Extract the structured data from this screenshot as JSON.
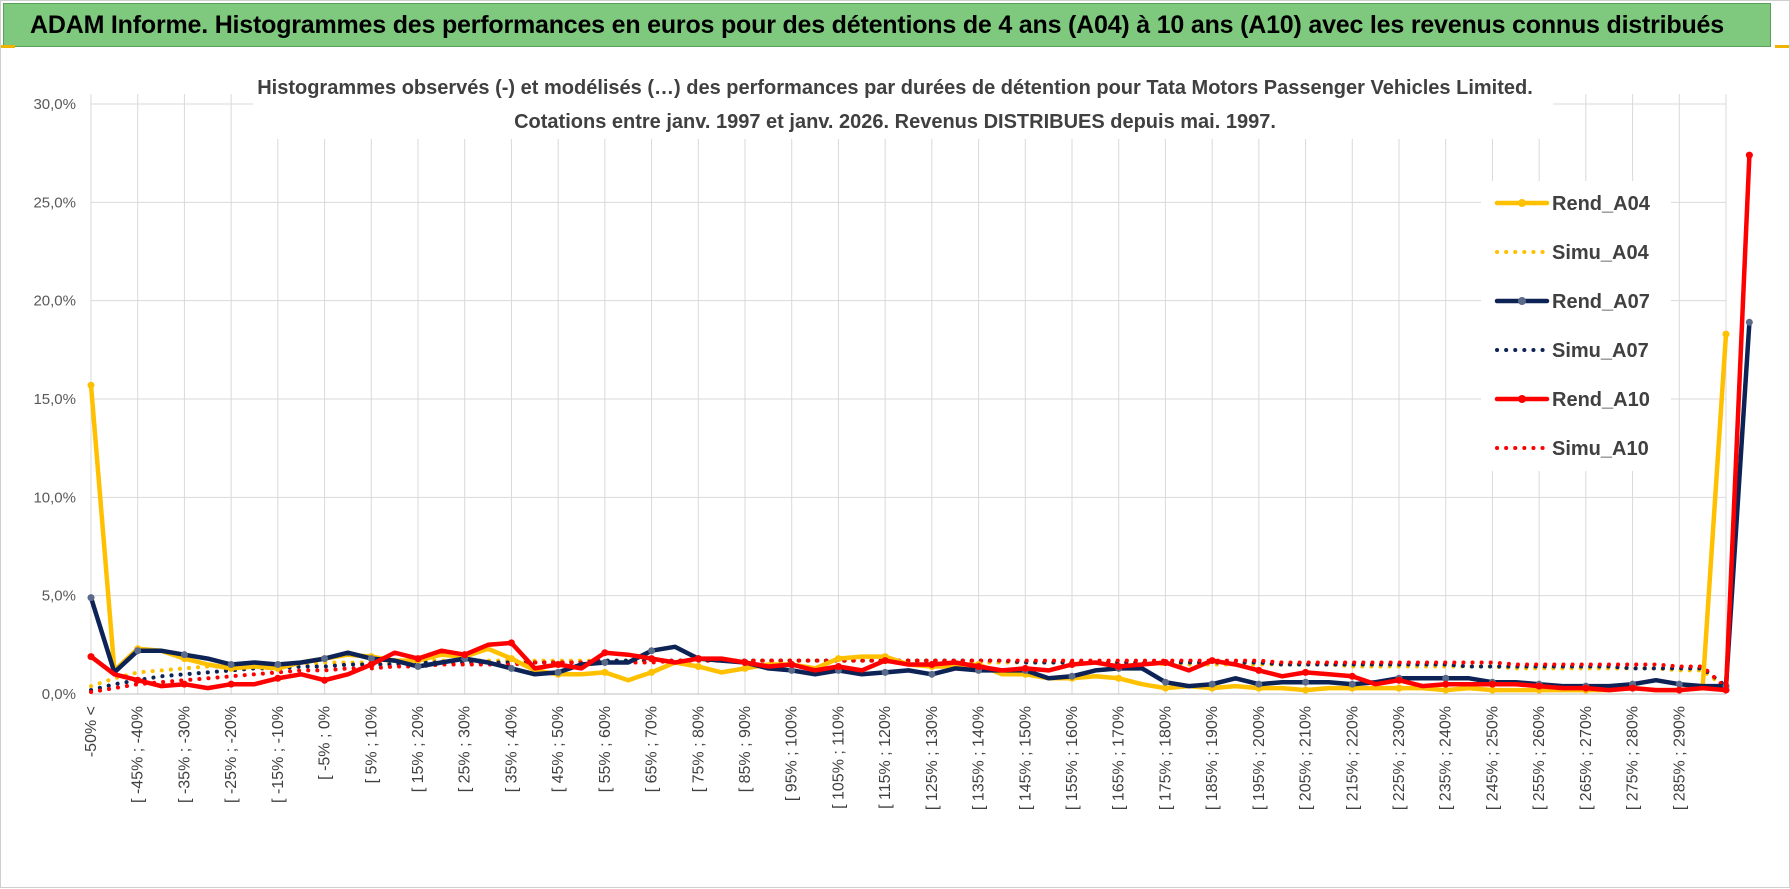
{
  "banner": {
    "title": "ADAM Informe. Histogrammes des performances en euros pour des détentions de 4 ans (A04) à 10 ans (A10) avec les revenus connus distribués"
  },
  "colors": {
    "A04": "#ffc000",
    "A07": "#0d2356",
    "A07_marker": "#5b6b8a",
    "A10": "#ff0000",
    "banner": "#7fc97f",
    "grid": "#d9d9d9"
  },
  "chart_data": {
    "type": "line",
    "title_line1": "Histogrammes observés (-) et modélisés (…) des performances par durées de détention pour Tata Motors Passenger Vehicles Limited.",
    "title_line2": "Cotations entre janv. 1997 et janv. 2026. Revenus DISTRIBUES depuis mai. 1997.",
    "ylim": [
      0,
      30
    ],
    "y_ticks": [
      "0,0%",
      "5,0%",
      "10,0%",
      "15,0%",
      "20,0%",
      "25,0%",
      "30,0%"
    ],
    "grid": true,
    "legend_position": "right",
    "x_labels": [
      "-50% <",
      "[ -45% ; -40%",
      "[ -35% ; -30%",
      "[ -25% ; -20%",
      "[ -15% ; -10%",
      "[ -5% ; 0%",
      "[ 5% ; 10%",
      "[ 15% ; 20%",
      "[ 25% ; 30%",
      "[ 35% ; 40%",
      "[ 45% ; 50%",
      "[ 55% ; 60%",
      "[ 65% ; 70%",
      "[ 75% ; 80%",
      "[ 85% ; 90%",
      "[ 95% ; 100%",
      "[ 105% ; 110%",
      "[ 115% ; 120%",
      "[ 125% ; 130%",
      "[ 135% ; 140%",
      "[ 145% ; 150%",
      "[ 155% ; 160%",
      "[ 165% ; 170%",
      "[ 175% ; 180%",
      "[ 185% ; 190%",
      "[ 195% ; 200%",
      "[ 205% ; 210%",
      "[ 215% ; 220%",
      "[ 225% ; 230%",
      "[ 235% ; 240%",
      "[ 245% ; 250%",
      "[ 255% ; 260%",
      "[ 265% ; 270%",
      "[ 275% ; 280%",
      "[ 285% ; 290%"
    ],
    "series": [
      {
        "name": "Rend_A04",
        "style": "solid",
        "color_key": "A04",
        "values": [
          15.7,
          1.2,
          2.3,
          2.2,
          1.8,
          1.5,
          1.3,
          1.4,
          1.3,
          1.6,
          1.8,
          2.0,
          1.9,
          1.7,
          1.7,
          2.0,
          1.9,
          2.3,
          1.8,
          1.2,
          1.0,
          1.0,
          1.1,
          0.7,
          1.1,
          1.6,
          1.4,
          1.1,
          1.3,
          1.5,
          1.5,
          1.3,
          1.8,
          1.9,
          1.9,
          1.5,
          1.4,
          1.4,
          1.5,
          1.0,
          1.0,
          0.8,
          0.8,
          0.9,
          0.8,
          0.5,
          0.3,
          0.4,
          0.3,
          0.4,
          0.3,
          0.3,
          0.2,
          0.3,
          0.3,
          0.3,
          0.3,
          0.3,
          0.2,
          0.3,
          0.2,
          0.2,
          0.2,
          0.2,
          0.2,
          0.2,
          0.3,
          0.2,
          0.2,
          0.3,
          18.3
        ]
      },
      {
        "name": "Simu_A04",
        "style": "dotted",
        "color_key": "A04",
        "values": [
          0.4,
          0.8,
          1.1,
          1.2,
          1.3,
          1.4,
          1.4,
          1.5,
          1.5,
          1.5,
          1.6,
          1.6,
          1.6,
          1.6,
          1.7,
          1.7,
          1.7,
          1.7,
          1.7,
          1.7,
          1.7,
          1.7,
          1.7,
          1.7,
          1.7,
          1.7,
          1.7,
          1.7,
          1.7,
          1.7,
          1.7,
          1.7,
          1.7,
          1.7,
          1.7,
          1.7,
          1.7,
          1.6,
          1.6,
          1.6,
          1.6,
          1.6,
          1.6,
          1.6,
          1.6,
          1.6,
          1.5,
          1.5,
          1.5,
          1.5,
          1.5,
          1.5,
          1.5,
          1.5,
          1.4,
          1.4,
          1.4,
          1.4,
          1.4,
          1.4,
          1.4,
          1.3,
          1.3,
          1.3,
          1.3,
          1.3,
          1.3,
          1.3,
          1.2,
          1.2,
          0.3
        ]
      },
      {
        "name": "Rend_A07",
        "style": "solid",
        "color_key": "A07",
        "values": [
          4.9,
          1.1,
          2.2,
          2.2,
          2.0,
          1.8,
          1.5,
          1.6,
          1.5,
          1.6,
          1.8,
          2.1,
          1.8,
          1.7,
          1.4,
          1.6,
          1.8,
          1.6,
          1.3,
          1.0,
          1.1,
          1.5,
          1.6,
          1.6,
          2.2,
          2.4,
          1.8,
          1.7,
          1.6,
          1.3,
          1.2,
          1.0,
          1.2,
          1.0,
          1.1,
          1.2,
          1.0,
          1.3,
          1.2,
          1.2,
          1.2,
          0.8,
          0.9,
          1.2,
          1.3,
          1.3,
          0.6,
          0.4,
          0.5,
          0.8,
          0.5,
          0.6,
          0.6,
          0.6,
          0.5,
          0.6,
          0.8,
          0.8,
          0.8,
          0.8,
          0.6,
          0.6,
          0.5,
          0.4,
          0.4,
          0.4,
          0.5,
          0.7,
          0.5,
          0.4,
          0.4,
          18.9
        ]
      },
      {
        "name": "Simu_A07",
        "style": "dotted",
        "color_key": "A07",
        "values": [
          0.2,
          0.5,
          0.7,
          0.9,
          1.0,
          1.1,
          1.2,
          1.3,
          1.3,
          1.4,
          1.4,
          1.5,
          1.5,
          1.5,
          1.6,
          1.6,
          1.6,
          1.6,
          1.6,
          1.6,
          1.6,
          1.6,
          1.7,
          1.7,
          1.7,
          1.7,
          1.7,
          1.7,
          1.7,
          1.7,
          1.7,
          1.7,
          1.7,
          1.7,
          1.7,
          1.7,
          1.7,
          1.7,
          1.7,
          1.7,
          1.6,
          1.6,
          1.6,
          1.6,
          1.6,
          1.6,
          1.6,
          1.6,
          1.6,
          1.6,
          1.6,
          1.5,
          1.5,
          1.5,
          1.5,
          1.5,
          1.5,
          1.5,
          1.5,
          1.4,
          1.4,
          1.4,
          1.4,
          1.4,
          1.4,
          1.4,
          1.3,
          1.3,
          1.3,
          1.3,
          0.4
        ]
      },
      {
        "name": "Rend_A10",
        "style": "solid",
        "color_key": "A10",
        "values": [
          1.9,
          1.0,
          0.7,
          0.4,
          0.5,
          0.3,
          0.5,
          0.5,
          0.8,
          1.0,
          0.7,
          1.0,
          1.5,
          2.1,
          1.8,
          2.2,
          2.0,
          2.5,
          2.6,
          1.3,
          1.5,
          1.3,
          2.1,
          2.0,
          1.8,
          1.6,
          1.8,
          1.8,
          1.6,
          1.4,
          1.5,
          1.2,
          1.4,
          1.2,
          1.7,
          1.5,
          1.5,
          1.6,
          1.4,
          1.2,
          1.3,
          1.2,
          1.5,
          1.6,
          1.4,
          1.5,
          1.6,
          1.2,
          1.7,
          1.5,
          1.2,
          0.9,
          1.1,
          1.0,
          0.9,
          0.5,
          0.7,
          0.4,
          0.5,
          0.5,
          0.5,
          0.5,
          0.4,
          0.3,
          0.3,
          0.2,
          0.3,
          0.2,
          0.2,
          0.3,
          0.2,
          27.4
        ]
      },
      {
        "name": "Simu_A10",
        "style": "dotted",
        "color_key": "A10",
        "values": [
          0.1,
          0.3,
          0.5,
          0.6,
          0.7,
          0.8,
          0.9,
          1.0,
          1.1,
          1.2,
          1.2,
          1.3,
          1.3,
          1.4,
          1.4,
          1.5,
          1.5,
          1.5,
          1.5,
          1.6,
          1.6,
          1.6,
          1.6,
          1.6,
          1.6,
          1.7,
          1.7,
          1.7,
          1.7,
          1.7,
          1.7,
          1.7,
          1.7,
          1.7,
          1.7,
          1.7,
          1.7,
          1.7,
          1.7,
          1.7,
          1.7,
          1.7,
          1.7,
          1.7,
          1.7,
          1.7,
          1.7,
          1.7,
          1.7,
          1.7,
          1.7,
          1.6,
          1.6,
          1.6,
          1.6,
          1.6,
          1.6,
          1.6,
          1.6,
          1.6,
          1.6,
          1.5,
          1.5,
          1.5,
          1.5,
          1.5,
          1.5,
          1.5,
          1.4,
          1.4,
          0.3
        ]
      }
    ]
  }
}
